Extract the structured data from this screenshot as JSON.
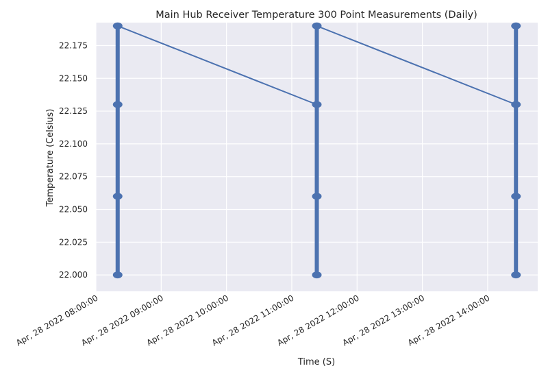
{
  "chart_data": {
    "type": "line",
    "title": "Main Hub Receiver Temperature 300 Point Measurements (Daily)",
    "xlabel": "Time (S)",
    "ylabel": "Temperature (Celsius)",
    "grid": true,
    "background_color": "#eaeaf2",
    "series_color": "#4c72b0",
    "date": "2022-04-28",
    "xlim": [
      "08:00:00",
      "14:46:00"
    ],
    "ylim": [
      21.9875,
      22.1925
    ],
    "x_ticks": [
      {
        "time": "08:00:00",
        "label": "Apr, 28 2022 08:00:00"
      },
      {
        "time": "09:00:00",
        "label": "Apr, 28 2022 09:00:00"
      },
      {
        "time": "10:00:00",
        "label": "Apr, 28 2022 10:00:00"
      },
      {
        "time": "11:00:00",
        "label": "Apr, 28 2022 11:00:00"
      },
      {
        "time": "12:00:00",
        "label": "Apr, 28 2022 12:00:00"
      },
      {
        "time": "13:00:00",
        "label": "Apr, 28 2022 13:00:00"
      },
      {
        "time": "14:00:00",
        "label": "Apr, 28 2022 14:00:00"
      }
    ],
    "y_ticks": [
      {
        "value": 22.0,
        "label": "22.000"
      },
      {
        "value": 22.025,
        "label": "22.025"
      },
      {
        "value": 22.05,
        "label": "22.050"
      },
      {
        "value": 22.075,
        "label": "22.075"
      },
      {
        "value": 22.1,
        "label": "22.100"
      },
      {
        "value": 22.125,
        "label": "22.125"
      },
      {
        "value": 22.15,
        "label": "22.150"
      },
      {
        "value": 22.175,
        "label": "22.175"
      }
    ],
    "series": [
      {
        "points": [
          {
            "t": "08:20:00",
            "y": 22.13
          },
          {
            "t": "08:20:00",
            "y": 22.0
          },
          {
            "t": "08:20:00",
            "y": 22.06
          },
          {
            "t": "08:20:00",
            "y": 22.19
          },
          {
            "t": "11:23:00",
            "y": 22.13
          },
          {
            "t": "11:23:00",
            "y": 22.0
          },
          {
            "t": "11:23:00",
            "y": 22.06
          },
          {
            "t": "11:23:00",
            "y": 22.19
          },
          {
            "t": "14:26:00",
            "y": 22.13
          },
          {
            "t": "14:26:00",
            "y": 22.0
          },
          {
            "t": "14:26:00",
            "y": 22.06
          },
          {
            "t": "14:26:00",
            "y": 22.19
          }
        ]
      }
    ]
  }
}
